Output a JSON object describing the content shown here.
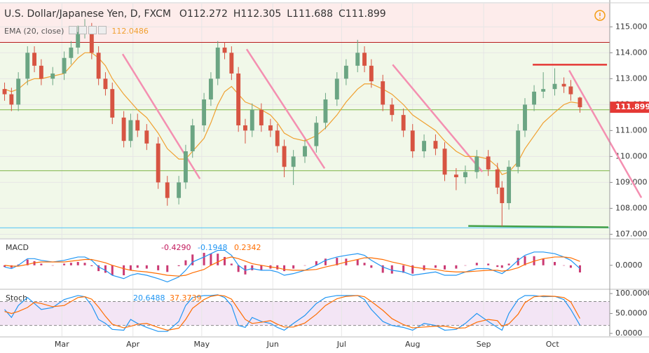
{
  "chart_data": [
    {
      "type": "candlestick",
      "title": "U.S. Dollar/Japanese Yen, D, FXCM",
      "ohlc_prefixes": [
        "O",
        "H",
        "L",
        "C"
      ],
      "ema_label": "EMA (20, close)",
      "up_color": "#6ba583",
      "down_color": "#d75442",
      "ema_color": "#f0a030",
      "grid": true,
      "x": [
        35,
        38,
        41,
        45,
        48,
        51,
        56,
        61,
        64,
        67,
        70,
        73,
        76,
        79,
        82,
        87,
        90,
        93,
        97,
        102,
        106,
        111,
        114,
        117,
        122,
        125,
        128,
        131,
        134,
        137,
        140,
        143,
        147,
        151,
        154,
        157,
        161,
        166,
        171,
        175,
        180,
        184,
        189,
        192,
        195,
        200,
        204,
        209,
        213,
        218,
        223,
        227,
        232,
        236,
        241,
        246,
        250,
        252,
        255,
        259,
        262,
        266,
        270,
        275,
        279,
        282,
        286
      ],
      "open": [
        112.6,
        112.4,
        112.0,
        113.0,
        114.0,
        113.5,
        113.0,
        113.2,
        113.8,
        114.2,
        114.8,
        114.9,
        114.0,
        113.0,
        112.6,
        111.5,
        110.6,
        111.4,
        111.0,
        110.5,
        109.0,
        108.4,
        109.0,
        110.2,
        111.2,
        112.2,
        113.0,
        114.2,
        114.0,
        113.2,
        111.2,
        111.0,
        111.8,
        111.2,
        111.0,
        110.4,
        109.6,
        110.0,
        110.4,
        111.3,
        112.2,
        113.0,
        113.5,
        114.0,
        113.5,
        112.9,
        112.0,
        111.6,
        111.0,
        110.2,
        110.6,
        110.3,
        109.3,
        109.2,
        109.4,
        110.0,
        109.5,
        108.8,
        108.2,
        109.6,
        111.0,
        112.0,
        112.5,
        112.6,
        112.8,
        112.7,
        112.272
      ],
      "high": [
        112.85,
        112.65,
        113.25,
        114.25,
        114.25,
        113.75,
        113.45,
        114.05,
        114.45,
        115.05,
        115.3,
        115.15,
        114.25,
        113.25,
        112.85,
        111.75,
        111.65,
        111.65,
        111.25,
        110.75,
        109.25,
        109.25,
        110.45,
        111.45,
        112.45,
        113.25,
        114.45,
        114.4,
        114.25,
        113.45,
        111.45,
        112.05,
        112.05,
        111.45,
        111.25,
        110.65,
        110.25,
        110.65,
        111.55,
        112.45,
        113.25,
        113.75,
        114.5,
        114.25,
        113.75,
        113.15,
        112.25,
        111.85,
        111.25,
        110.85,
        110.85,
        110.55,
        109.55,
        109.65,
        110.25,
        110.25,
        109.75,
        109.05,
        109.85,
        111.25,
        112.25,
        112.75,
        113.25,
        113.4,
        113.05,
        112.95,
        112.305
      ],
      "low": [
        112.15,
        111.75,
        111.75,
        112.75,
        113.25,
        112.75,
        112.75,
        112.95,
        113.55,
        113.95,
        114.55,
        113.75,
        112.75,
        112.35,
        111.25,
        110.35,
        110.35,
        110.75,
        110.25,
        108.75,
        108.1,
        108.15,
        108.75,
        109.95,
        110.95,
        111.95,
        112.75,
        113.75,
        112.95,
        110.95,
        110.5,
        110.75,
        110.95,
        110.75,
        110.15,
        109.2,
        108.9,
        109.75,
        110.15,
        111.05,
        111.95,
        112.75,
        113.25,
        113.25,
        112.65,
        111.75,
        111.35,
        110.75,
        109.95,
        109.95,
        110.05,
        109.05,
        108.7,
        108.95,
        109.15,
        109.25,
        108.55,
        107.3,
        107.95,
        109.35,
        110.75,
        111.75,
        112.25,
        112.35,
        112.45,
        112.15,
        111.688
      ],
      "close": [
        112.4,
        112.0,
        113.0,
        114.0,
        113.5,
        113.0,
        113.2,
        113.8,
        114.2,
        114.8,
        114.9,
        114.0,
        113.0,
        112.6,
        111.5,
        110.6,
        111.4,
        111.0,
        110.5,
        109.0,
        108.4,
        109.0,
        110.2,
        111.2,
        112.2,
        113.0,
        114.2,
        114.0,
        113.2,
        111.2,
        111.0,
        111.8,
        111.2,
        111.0,
        110.4,
        109.6,
        110.0,
        110.4,
        111.3,
        112.2,
        113.0,
        113.5,
        114.0,
        113.5,
        112.9,
        112.0,
        111.6,
        111.0,
        110.2,
        110.6,
        110.3,
        109.3,
        109.2,
        109.4,
        110.0,
        109.5,
        108.8,
        108.2,
        109.6,
        111.0,
        112.0,
        112.5,
        112.6,
        112.8,
        112.7,
        112.4,
        111.899
      ],
      "ema": [
        112.6,
        112.5,
        112.6,
        112.9,
        113.0,
        113.0,
        113.1,
        113.2,
        113.5,
        113.8,
        114.0,
        114.0,
        113.8,
        113.5,
        113.0,
        112.4,
        112.1,
        111.8,
        111.5,
        110.9,
        110.3,
        109.9,
        109.9,
        110.2,
        110.7,
        111.3,
        112.0,
        112.5,
        112.7,
        112.4,
        112.1,
        112.0,
        111.8,
        111.6,
        111.3,
        110.9,
        110.7,
        110.6,
        110.8,
        111.1,
        111.6,
        112.1,
        112.6,
        112.8,
        112.8,
        112.6,
        112.4,
        112.0,
        111.6,
        111.3,
        111.0,
        110.6,
        110.2,
        110.0,
        110.0,
        109.9,
        109.6,
        109.3,
        109.4,
        109.8,
        110.3,
        110.8,
        111.3,
        111.7,
        112.0,
        112.1,
        112.0486
      ],
      "xlim": [
        33,
        299
      ],
      "xticks": [
        {
          "value": 60,
          "label": "Mar"
        },
        {
          "value": 91,
          "label": "Apr"
        },
        {
          "value": 121,
          "label": "May"
        },
        {
          "value": 152,
          "label": "Jun"
        },
        {
          "value": 182,
          "label": "Jul"
        },
        {
          "value": 213,
          "label": "Aug"
        },
        {
          "value": 244,
          "label": "Sep"
        },
        {
          "value": 274,
          "label": "Oct"
        }
      ],
      "ylim": [
        106.85,
        115.9
      ],
      "yticks": [
        {
          "value": 107,
          "label": "107.000"
        },
        {
          "value": 108,
          "label": "108.000"
        },
        {
          "value": 109,
          "label": "109.000"
        },
        {
          "value": 110,
          "label": "110.000"
        },
        {
          "value": 111,
          "label": "111.000"
        },
        {
          "value": 112,
          "label": "112.000"
        },
        {
          "value": 113,
          "label": "113.000"
        },
        {
          "value": 114,
          "label": "114.000"
        },
        {
          "value": 115,
          "label": "115.000"
        }
      ],
      "hlines": [
        {
          "value": 114.4,
          "color": "#b71c1c"
        },
        {
          "value": 111.8,
          "color": "#7cb342"
        },
        {
          "value": 109.45,
          "color": "#7cb342"
        },
        {
          "value": 107.25,
          "color": "#4fc3f7"
        }
      ],
      "trendlines": [
        {
          "x": [
            86.5,
            120.2
          ],
          "y": [
            113.95,
            109.14
          ],
          "color": "#f48fb1"
        },
        {
          "x": [
            140.6,
            174.6
          ],
          "y": [
            114.14,
            109.54
          ],
          "color": "#f48fb1"
        },
        {
          "x": [
            204.3,
            243.4
          ],
          "y": [
            113.54,
            109.41
          ],
          "color": "#f48fb1"
        },
        {
          "x": [
            281.3,
            312.8
          ],
          "y": [
            113.32,
            108.41
          ],
          "color": "#f48fb1"
        },
        {
          "x": [
            265.4,
            297.8
          ],
          "y": [
            113.54,
            113.54
          ],
          "color": "#e53935"
        },
        {
          "x": [
            237.3,
            298.4
          ],
          "y": [
            107.32,
            107.27
          ],
          "color": "#43a047"
        }
      ]
    },
    {
      "type": "macd",
      "title": "MACD",
      "ylim": [
        -1.4,
        1.55
      ],
      "yticks": [
        {
          "value": 0,
          "label": "0.0000"
        }
      ],
      "series": [
        {
          "type": "bar",
          "color": "#c2185b",
          "last_label": "-0.4290",
          "values": [
            -0.1,
            -0.15,
            0.05,
            0.35,
            0.25,
            0.1,
            0.0,
            0.1,
            0.15,
            0.2,
            0.15,
            -0.05,
            -0.35,
            -0.45,
            -0.6,
            -0.6,
            -0.3,
            -0.15,
            -0.2,
            -0.3,
            -0.4,
            -0.05,
            0.3,
            0.65,
            0.75,
            0.7,
            0.7,
            0.5,
            0.1,
            -0.4,
            -0.55,
            -0.3,
            -0.3,
            -0.2,
            -0.25,
            -0.35,
            -0.2,
            0.0,
            0.25,
            0.4,
            0.45,
            0.4,
            0.35,
            0.15,
            -0.15,
            -0.45,
            -0.5,
            -0.45,
            -0.5,
            -0.3,
            -0.15,
            -0.25,
            -0.2,
            0.0,
            0.15,
            0.1,
            -0.1,
            -0.15,
            0.1,
            0.45,
            0.55,
            0.55,
            0.4,
            0.2,
            0.0,
            -0.15,
            -0.429
          ]
        },
        {
          "type": "line",
          "color": "#2196f3",
          "values": [
            -0.1,
            -0.2,
            0.0,
            0.4,
            0.4,
            0.3,
            0.2,
            0.3,
            0.4,
            0.5,
            0.5,
            0.3,
            -0.1,
            -0.3,
            -0.6,
            -0.8,
            -0.6,
            -0.5,
            -0.6,
            -0.8,
            -1.0,
            -0.7,
            -0.3,
            0.2,
            0.5,
            0.7,
            0.9,
            0.9,
            0.6,
            0.0,
            -0.3,
            -0.2,
            -0.3,
            -0.3,
            -0.4,
            -0.6,
            -0.5,
            -0.3,
            0.0,
            0.3,
            0.5,
            0.6,
            0.7,
            0.6,
            0.3,
            -0.1,
            -0.3,
            -0.4,
            -0.6,
            -0.5,
            -0.4,
            -0.6,
            -0.6,
            -0.4,
            -0.2,
            -0.2,
            -0.4,
            -0.5,
            -0.2,
            0.3,
            0.6,
            0.8,
            0.8,
            0.7,
            0.5,
            0.3,
            -0.1948
          ]
        },
        {
          "type": "line",
          "color": "#ff6d00",
          "values": [
            0.0,
            -0.05,
            -0.05,
            0.05,
            0.15,
            0.2,
            0.2,
            0.2,
            0.25,
            0.3,
            0.35,
            0.35,
            0.25,
            0.15,
            0.0,
            -0.2,
            -0.3,
            -0.35,
            -0.4,
            -0.5,
            -0.6,
            -0.65,
            -0.6,
            -0.45,
            -0.25,
            0.0,
            0.2,
            0.4,
            0.5,
            0.4,
            0.25,
            0.1,
            0.0,
            -0.1,
            -0.15,
            -0.25,
            -0.3,
            -0.3,
            -0.25,
            -0.1,
            0.05,
            0.2,
            0.35,
            0.45,
            0.45,
            0.35,
            0.2,
            0.05,
            -0.1,
            -0.2,
            -0.25,
            -0.35,
            -0.4,
            -0.4,
            -0.35,
            -0.3,
            -0.3,
            -0.35,
            -0.3,
            -0.15,
            0.05,
            0.25,
            0.4,
            0.5,
            0.5,
            0.45,
            0.2342
          ]
        }
      ]
    },
    {
      "type": "stoch",
      "title": "Stoch",
      "ylim": [
        -7,
        109
      ],
      "yticks": [
        {
          "value": 0,
          "label": "0.0000"
        },
        {
          "value": 50,
          "label": "50.0000"
        },
        {
          "value": 100,
          "label": "100.0000"
        }
      ],
      "bands": [
        20,
        80
      ],
      "band_color": "#f3e5f5",
      "series": [
        {
          "type": "line",
          "color": "#2196f3",
          "values": [
            60,
            40,
            70,
            90,
            75,
            60,
            65,
            85,
            90,
            95,
            92,
            70,
            35,
            25,
            10,
            8,
            35,
            25,
            15,
            5,
            5,
            30,
            70,
            90,
            95,
            95,
            97,
            90,
            70,
            20,
            15,
            40,
            30,
            25,
            15,
            8,
            25,
            45,
            75,
            90,
            95,
            95,
            95,
            85,
            60,
            30,
            20,
            15,
            8,
            25,
            20,
            8,
            10,
            25,
            50,
            30,
            15,
            8,
            50,
            85,
            95,
            95,
            92,
            93,
            85,
            60,
            20.6488
          ]
        },
        {
          "type": "line",
          "color": "#ff6d00",
          "values": [
            55,
            50,
            55,
            65,
            78,
            75,
            67,
            70,
            80,
            90,
            92,
            86,
            66,
            43,
            23,
            14,
            18,
            23,
            25,
            15,
            8,
            13,
            35,
            63,
            85,
            93,
            96,
            94,
            86,
            60,
            35,
            25,
            28,
            32,
            23,
            16,
            16,
            26,
            48,
            70,
            87,
            93,
            95,
            92,
            80,
            58,
            37,
            22,
            14,
            16,
            18,
            18,
            13,
            14,
            28,
            35,
            32,
            18,
            24,
            48,
            77,
            92,
            94,
            93,
            90,
            79,
            37.3739
          ]
        }
      ]
    }
  ]
}
